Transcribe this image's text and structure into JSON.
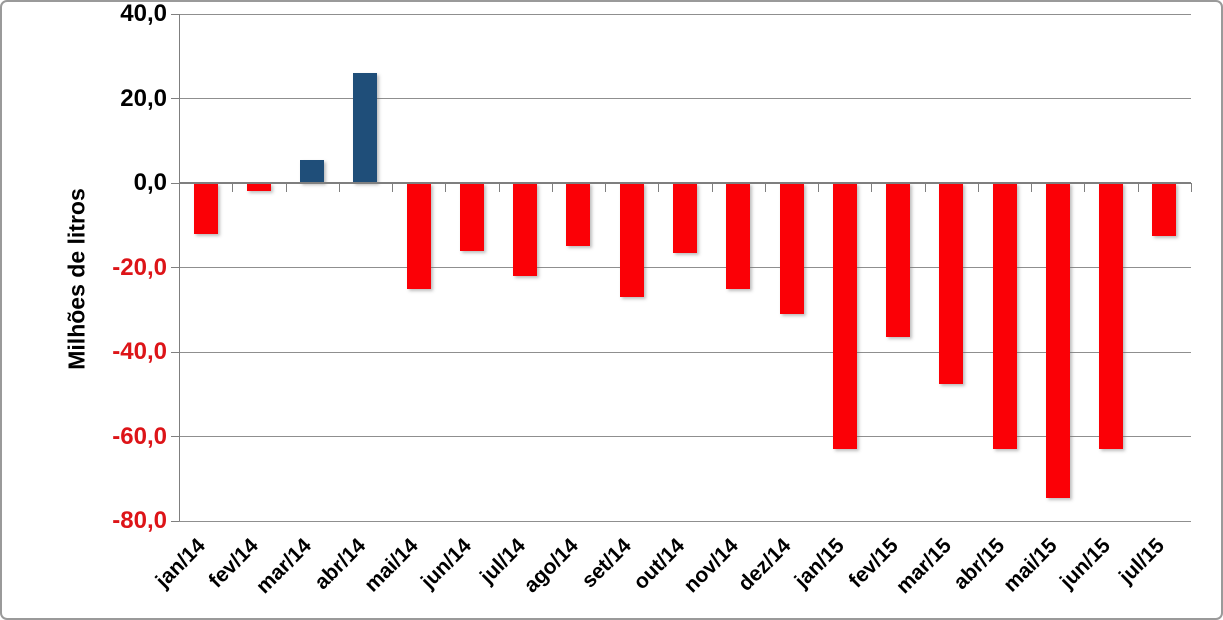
{
  "chart_data": {
    "type": "bar",
    "title": "",
    "xlabel": "",
    "ylabel": "Milhões de litros",
    "categories": [
      "jan/14",
      "fev/14",
      "mar/14",
      "abr/14",
      "mai/14",
      "jun/14",
      "jul/14",
      "ago/14",
      "set/14",
      "out/14",
      "nov/14",
      "dez/14",
      "jan/15",
      "fev/15",
      "mar/15",
      "abr/15",
      "mai/15",
      "jun/15",
      "jul/15"
    ],
    "values": [
      -12,
      -2,
      5.5,
      26,
      -25,
      -16,
      -22,
      -15,
      -27,
      -16.5,
      -25,
      -31,
      -63,
      -36.5,
      -47.5,
      -63,
      -74.5,
      -63,
      -12.5
    ],
    "ylim": [
      -80,
      40
    ],
    "yticks": [
      40,
      20,
      0,
      -20,
      -40,
      -60,
      -80
    ],
    "ytick_labels": [
      "40,0",
      "20,0",
      "0,0",
      "-20,0",
      "-40,0",
      "-60,0",
      "-80,0"
    ],
    "grid": true,
    "legend_position": "none",
    "colors": {
      "positive_bar": "#1F4E79",
      "negative_bar": "#FB0006",
      "positive_tick_label": "#000000",
      "negative_tick_label": "#DD1418",
      "gridline": "#8F8F8F",
      "axis_line": "#7F7F7F"
    }
  }
}
